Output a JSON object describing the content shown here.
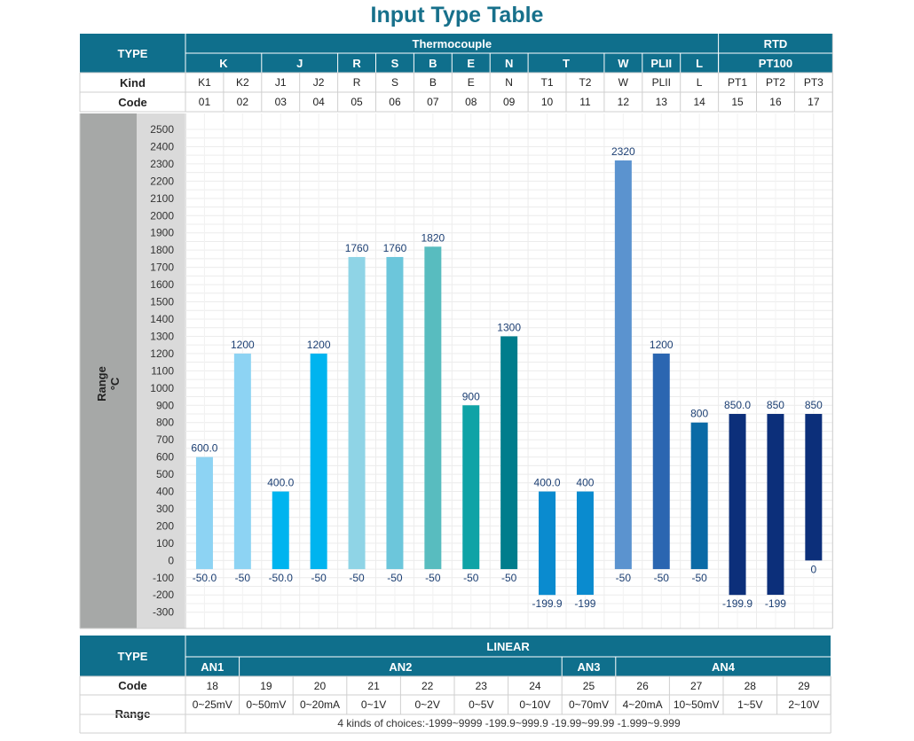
{
  "title": "Input Type Table",
  "top_table": {
    "type_label": "TYPE",
    "groups": [
      {
        "label": "Thermocouple",
        "from": 0,
        "to": 13
      },
      {
        "label": "RTD",
        "from": 14,
        "to": 16
      }
    ],
    "sensors": [
      {
        "label": "K",
        "from": 0,
        "to": 1
      },
      {
        "label": "J",
        "from": 2,
        "to": 3
      },
      {
        "label": "R",
        "from": 4,
        "to": 4
      },
      {
        "label": "S",
        "from": 5,
        "to": 5
      },
      {
        "label": "B",
        "from": 6,
        "to": 6
      },
      {
        "label": "E",
        "from": 7,
        "to": 7
      },
      {
        "label": "N",
        "from": 8,
        "to": 8
      },
      {
        "label": "T",
        "from": 9,
        "to": 10
      },
      {
        "label": "W",
        "from": 11,
        "to": 11
      },
      {
        "label": "PLII",
        "from": 12,
        "to": 12
      },
      {
        "label": "L",
        "from": 13,
        "to": 13
      },
      {
        "label": "PT100",
        "from": 14,
        "to": 16
      }
    ],
    "kind_label": "Kind",
    "kinds": [
      "K1",
      "K2",
      "J1",
      "J2",
      "R",
      "S",
      "B",
      "E",
      "N",
      "T1",
      "T2",
      "W",
      "PLII",
      "L",
      "PT1",
      "PT2",
      "PT3"
    ],
    "code_label": "Code",
    "codes": [
      "01",
      "02",
      "03",
      "04",
      "05",
      "06",
      "07",
      "08",
      "09",
      "10",
      "11",
      "12",
      "13",
      "14",
      "15",
      "16",
      "17"
    ],
    "range_label": "Range °C"
  },
  "chart_data": {
    "type": "bar",
    "categories": [
      "K1",
      "K2",
      "J1",
      "J2",
      "R",
      "S",
      "B",
      "E",
      "N",
      "T1",
      "T2",
      "W",
      "PLII",
      "L",
      "PT1",
      "PT2",
      "PT3"
    ],
    "series": [
      {
        "low": [
          -50.0,
          -50,
          -50.0,
          -50,
          -50,
          -50,
          -50,
          -50,
          -50,
          -199.9,
          -199,
          -50,
          -50,
          -50,
          -199.9,
          -199,
          0
        ],
        "high": [
          600.0,
          1200,
          400.0,
          1200,
          1760,
          1760,
          1820,
          900,
          1300,
          400.0,
          400,
          2320,
          1200,
          800,
          850.0,
          850,
          850
        ]
      }
    ],
    "low_labels": [
      "-50.0",
      "-50",
      "-50.0",
      "-50",
      "-50",
      "-50",
      "-50",
      "-50",
      "-50",
      "-199.9",
      "-199",
      "-50",
      "-50",
      "-50",
      "-199.9",
      "-199",
      "0"
    ],
    "high_labels": [
      "600.0",
      "1200",
      "400.0",
      "1200",
      "1760",
      "1760",
      "1820",
      "900",
      "1300",
      "400.0",
      "400",
      "2320",
      "1200",
      "800",
      "850.0",
      "850",
      "850"
    ],
    "colors": [
      "#8dd3f3",
      "#8dd3f3",
      "#00b4ef",
      "#00b4ef",
      "#8fd4e6",
      "#6cc6db",
      "#58bcbf",
      "#0fa3a6",
      "#007d8c",
      "#0a8bcf",
      "#0a8bcf",
      "#5b93cf",
      "#2b66b1",
      "#0a6aa6",
      "#0c2f7a",
      "#0c2f7a",
      "#0c2f7a"
    ],
    "ylim": [
      -300,
      2500
    ],
    "yticks": [
      -300,
      -200,
      -100,
      0,
      100,
      200,
      300,
      400,
      500,
      600,
      700,
      800,
      900,
      1000,
      1100,
      1200,
      1300,
      1400,
      1500,
      1600,
      1700,
      1800,
      1900,
      2000,
      2100,
      2200,
      2300,
      2400,
      2500
    ],
    "ylabel": "Range °C",
    "grid": true
  },
  "linear_table": {
    "type_label": "TYPE",
    "group_label": "LINEAR",
    "sub_groups": [
      {
        "label": "AN1",
        "from": 0,
        "to": 0
      },
      {
        "label": "AN2",
        "from": 1,
        "to": 6
      },
      {
        "label": "AN3",
        "from": 7,
        "to": 7
      },
      {
        "label": "AN4",
        "from": 8,
        "to": 11
      }
    ],
    "code_label": "Code",
    "codes": [
      "18",
      "19",
      "20",
      "21",
      "22",
      "23",
      "24",
      "25",
      "26",
      "27",
      "28",
      "29"
    ],
    "range_label": "Range",
    "ranges": [
      "0~25mV",
      "0~50mV",
      "0~20mA",
      "0~1V",
      "0~2V",
      "0~5V",
      "0~10V",
      "0~70mV",
      "4~20mA",
      "10~50mV",
      "1~5V",
      "2~10V"
    ],
    "note": "4 kinds of choices:-1999~9999  -199.9~999.9  -19.99~99.99  -1.999~9.999"
  }
}
